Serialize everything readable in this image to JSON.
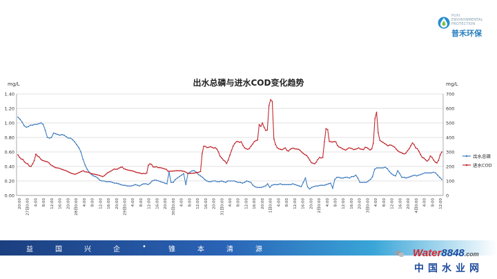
{
  "brand": {
    "logo_tagline": "PUXI ENVIRONMENTAL PROTECTION",
    "logo_name": "普禾环保",
    "banner_slogan": [
      "益",
      "国",
      "兴",
      "企",
      "•",
      "锥",
      "本",
      "清",
      "源"
    ],
    "footer_word": "Water",
    "footer_number": "8848",
    "footer_suffix": ".com",
    "footer_cn": "中国水业网",
    "colors": {
      "banner_dark": "#1b3f7f",
      "banner_light": "#39a5d8",
      "footer_red": "#d7262d",
      "footer_blue": "#1d4a9c"
    }
  },
  "chart_data": {
    "type": "line",
    "title": "出水总磷与进水COD变化趋势",
    "y_unit_left": "mg/L",
    "y_unit_right": "mg/L",
    "left_ylim": [
      0,
      1.4
    ],
    "right_ylim": [
      0,
      700
    ],
    "left_ticks": [
      "0.00",
      "0.20",
      "0.40",
      "0.60",
      "0.80",
      "1.00",
      "1.20",
      "1.40"
    ],
    "right_ticks": [
      "0",
      "100",
      "200",
      "300",
      "400",
      "500",
      "600",
      "700"
    ],
    "x_tick_labels": [
      "20:00",
      "27日0:00",
      "4:00",
      "8:00",
      "12:00",
      "16:00",
      "20:00",
      "28日0:00",
      "4:00",
      "8:00",
      "12:00",
      "16:00",
      "20:00",
      "29日0:00",
      "4:00",
      "8:00",
      "12:00",
      "16:00",
      "20:00",
      "30日0:00",
      "4:00",
      "8:00",
      "12:00",
      "16:00",
      "20:00",
      "31日0:00",
      "4:00",
      "8:00",
      "12:00",
      "16:00",
      "20:00",
      "1日0:00",
      "4:00",
      "8:00",
      "12:00",
      "16:00",
      "20:00",
      "2日0:00",
      "4:00",
      "8:00",
      "12:00",
      "16:00",
      "20:00",
      "3日0:00",
      "4:00",
      "8:00",
      "12:00",
      "16:00",
      "20:00",
      "4日0:00",
      "4:00",
      "8:00",
      "12:00"
    ],
    "grid": true,
    "legend_position": "right",
    "series": [
      {
        "name": "出水总磷",
        "axis": "left",
        "color": "#3d7bbf",
        "values": [
          1.08,
          1.05,
          1.01,
          0.96,
          0.94,
          0.95,
          0.97,
          0.97,
          0.98,
          0.98,
          0.99,
          1.0,
          0.98,
          0.9,
          0.8,
          0.79,
          0.8,
          0.86,
          0.85,
          0.84,
          0.83,
          0.84,
          0.83,
          0.81,
          0.79,
          0.79,
          0.77,
          0.74,
          0.7,
          0.66,
          0.6,
          0.5,
          0.42,
          0.36,
          0.32,
          0.29,
          0.27,
          0.26,
          0.24,
          0.21,
          0.2,
          0.2,
          0.19,
          0.19,
          0.19,
          0.18,
          0.17,
          0.17,
          0.16,
          0.15,
          0.14,
          0.14,
          0.13,
          0.13,
          0.13,
          0.14,
          0.15,
          0.14,
          0.13,
          0.15,
          0.16,
          0.16,
          0.15,
          0.17,
          0.2,
          0.21,
          0.21,
          0.2,
          0.19,
          0.18,
          0.17,
          0.16,
          0.32,
          0.18,
          0.18,
          0.22,
          0.24,
          0.26,
          0.28,
          0.3,
          0.15,
          0.3,
          0.32,
          0.34,
          0.34,
          0.32,
          0.29,
          0.27,
          0.25,
          0.22,
          0.2,
          0.19,
          0.19,
          0.2,
          0.2,
          0.19,
          0.19,
          0.2,
          0.19,
          0.18,
          0.2,
          0.2,
          0.2,
          0.2,
          0.19,
          0.18,
          0.18,
          0.17,
          0.18,
          0.2,
          0.19,
          0.18,
          0.14,
          0.12,
          0.11,
          0.11,
          0.11,
          0.12,
          0.13,
          0.16,
          0.11,
          0.14,
          0.15,
          0.15,
          0.15,
          0.16,
          0.15,
          0.15,
          0.15,
          0.15,
          0.15,
          0.16,
          0.15,
          0.14,
          0.13,
          0.12,
          0.18,
          0.24,
          0.12,
          0.09,
          0.11,
          0.12,
          0.13,
          0.13,
          0.14,
          0.14,
          0.14,
          0.15,
          0.16,
          0.17,
          0.1,
          0.22,
          0.25,
          0.25,
          0.24,
          0.24,
          0.25,
          0.25,
          0.24,
          0.26,
          0.26,
          0.28,
          0.24,
          0.18,
          0.18,
          0.18,
          0.18,
          0.2,
          0.22,
          0.26,
          0.36,
          0.38,
          0.38,
          0.38,
          0.38,
          0.39,
          0.37,
          0.33,
          0.3,
          0.28,
          0.27,
          0.34,
          0.3,
          0.25,
          0.25,
          0.24,
          0.25,
          0.26,
          0.27,
          0.28,
          0.27,
          0.28,
          0.29,
          0.3,
          0.31,
          0.31,
          0.31,
          0.31,
          0.32,
          0.31,
          0.28,
          0.25,
          0.22
        ]
      },
      {
        "name": "进水COD",
        "axis": "right",
        "color": "#c0272d",
        "values": [
          280,
          262,
          252,
          248,
          232,
          222,
          218,
          202,
          200,
          218,
          240,
          285,
          272,
          265,
          250,
          242,
          238,
          235,
          232,
          225,
          212,
          205,
          198,
          192,
          190,
          188,
          184,
          180,
          176,
          172,
          168,
          162,
          156,
          152,
          148,
          146,
          150,
          155,
          160,
          166,
          170,
          164,
          162,
          160,
          156,
          151,
          148,
          146,
          144,
          141,
          138,
          134,
          130,
          136,
          146,
          156,
          162,
          168,
          175,
          182,
          180,
          182,
          188,
          194,
          196,
          184,
          180,
          176,
          174,
          172,
          170,
          166,
          162,
          158,
          156,
          154,
          150,
          152,
          150,
          154,
          208,
          218,
          214,
          196,
          196,
          198,
          192,
          192,
          190,
          186,
          183,
          180,
          168,
          166,
          167,
          168,
          169,
          170,
          171,
          170,
          170,
          168,
          166,
          160,
          154,
          152,
          152,
          153,
          154,
          156,
          158,
          160,
          165,
          290,
          340,
          338,
          330,
          332,
          336,
          332,
          326,
          330,
          320,
          300,
          270,
          258,
          244,
          236,
          220,
          244,
          278,
          310,
          340,
          358,
          370,
          372,
          366,
          370,
          345,
          328,
          322,
          318,
          324,
          340,
          355,
          372,
          378,
          382,
          488,
          476,
          500,
          470,
          448,
          452,
          620,
          660,
          648,
          390,
          352,
          330,
          322,
          318,
          315,
          322,
          328,
          310,
          306,
          318,
          324,
          326,
          321,
          320,
          318,
          312,
          300,
          290,
          282,
          276,
          262,
          244,
          226,
          222,
          218,
          230,
          248,
          262,
          258,
          262,
          370,
          460,
          454,
          372,
          370,
          368,
          372,
          370,
          344,
          334,
          330,
          322,
          318,
          312,
          320,
          328,
          326,
          322,
          316,
          318,
          322,
          328,
          320,
          318,
          316,
          332,
          330,
          322,
          314,
          321,
          360,
          530,
          574,
          432,
          380,
          372,
          365,
          358,
          350,
          342,
          348,
          346,
          340,
          334,
          320,
          308,
          300,
          296,
          290,
          286,
          292,
          308,
          322,
          342,
          362,
          350,
          328,
          322,
          304,
          282,
          262,
          258,
          246,
          236,
          246,
          272,
          262,
          244,
          230,
          224,
          242,
          278,
          300
        ]
      }
    ]
  }
}
